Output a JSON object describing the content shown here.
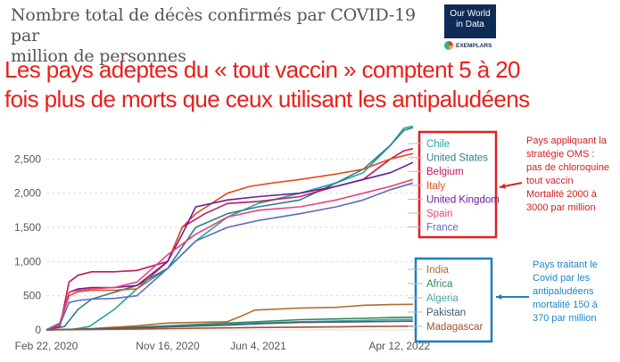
{
  "title_lines": [
    "Nombre total de décès confirmés par COVID-19 par",
    "million de personnes"
  ],
  "logo": {
    "line1": "Our World",
    "line2": "in Data",
    "sub": "EXEMPLARS"
  },
  "headline_lines": [
    "Les pays adeptes du « tout vaccin » comptent 5 à 20",
    "fois plus de morts que ceux utilisant les antipaludéens"
  ],
  "annotations": {
    "who_group": [
      "Pays appliquant la",
      "stratégie OMS :",
      "pas de chloroquine",
      "tout vaccin",
      "Mortalité 2000 à",
      "3000 par million"
    ],
    "antimalarial_group": [
      "Pays traitant le",
      "Covid par les",
      "antipaludéens",
      "mortalité 150 à",
      "370 par million"
    ]
  },
  "colors": {
    "red_box": "#e02020",
    "blue_box": "#1f7ec0",
    "headline": "#e8201b"
  },
  "chart_data": {
    "type": "line",
    "xlabel": "",
    "ylabel": "",
    "x_ticks": [
      "Feb 22, 2020",
      "Nov 16, 2020",
      "Jun 4, 2021",
      "Apr 12, 2022"
    ],
    "x_tick_positions": [
      0,
      268,
      468,
      780
    ],
    "x_range": [
      0,
      820
    ],
    "y_ticks": [
      0,
      500,
      1000,
      1500,
      2000,
      2500
    ],
    "y_tick_labels": [
      "0",
      "500",
      "1,000",
      "1,500",
      "2,000",
      "2,500"
    ],
    "y_range": [
      0,
      3000
    ],
    "grid": true,
    "legend_groups": [
      {
        "box": "red",
        "names": [
          "Chile",
          "United States",
          "Belgium",
          "Italy",
          "United Kingdom",
          "Spain",
          "France"
        ]
      },
      {
        "box": "blue",
        "names": [
          "India",
          "Africa",
          "Algeria",
          "Pakistan",
          "Madagascar"
        ]
      }
    ],
    "series": [
      {
        "name": "Chile",
        "color": "#26a69a",
        "x": [
          0,
          60,
          95,
          150,
          200,
          268,
          330,
          400,
          468,
          560,
          640,
          700,
          760,
          790,
          810
        ],
        "y": [
          0,
          10,
          50,
          300,
          600,
          900,
          1300,
          1650,
          1850,
          2000,
          2150,
          2300,
          2700,
          2950,
          2980
        ]
      },
      {
        "name": "United States",
        "color": "#2e7d8c",
        "x": [
          0,
          40,
          70,
          100,
          150,
          200,
          268,
          330,
          400,
          468,
          560,
          640,
          700,
          760,
          790,
          810
        ],
        "y": [
          0,
          50,
          300,
          450,
          550,
          650,
          900,
          1500,
          1700,
          1800,
          1900,
          2150,
          2350,
          2700,
          2920,
          2960
        ]
      },
      {
        "name": "Belgium",
        "color": "#c2185b",
        "x": [
          0,
          30,
          50,
          70,
          100,
          150,
          200,
          268,
          300,
          350,
          400,
          468,
          560,
          640,
          700,
          760,
          790,
          810
        ],
        "y": [
          0,
          50,
          700,
          800,
          850,
          850,
          870,
          1000,
          1500,
          1700,
          1850,
          1880,
          1950,
          2100,
          2200,
          2500,
          2620,
          2650
        ]
      },
      {
        "name": "Italy",
        "color": "#e64a19",
        "x": [
          0,
          30,
          50,
          70,
          100,
          150,
          200,
          268,
          300,
          330,
          400,
          450,
          500,
          560,
          640,
          700,
          760,
          810
        ],
        "y": [
          0,
          100,
          500,
          560,
          580,
          580,
          600,
          1000,
          1500,
          1700,
          2000,
          2100,
          2150,
          2200,
          2280,
          2350,
          2500,
          2580
        ]
      },
      {
        "name": "United Kingdom",
        "color": "#6a1b9a",
        "x": [
          0,
          30,
          50,
          70,
          100,
          150,
          200,
          268,
          300,
          330,
          400,
          468,
          560,
          640,
          700,
          760,
          810
        ],
        "y": [
          0,
          100,
          550,
          600,
          620,
          620,
          650,
          1000,
          1400,
          1800,
          1900,
          1950,
          2000,
          2100,
          2200,
          2300,
          2450
        ]
      },
      {
        "name": "Spain",
        "color": "#ec407a",
        "x": [
          0,
          30,
          50,
          70,
          100,
          150,
          200,
          268,
          330,
          400,
          468,
          560,
          640,
          700,
          760,
          810
        ],
        "y": [
          0,
          100,
          550,
          580,
          600,
          620,
          700,
          1100,
          1400,
          1650,
          1750,
          1800,
          1900,
          2000,
          2100,
          2200
        ]
      },
      {
        "name": "France",
        "color": "#5c6bc0",
        "x": [
          0,
          30,
          50,
          70,
          100,
          150,
          200,
          268,
          330,
          400,
          468,
          560,
          640,
          700,
          760,
          810
        ],
        "y": [
          0,
          80,
          400,
          430,
          450,
          460,
          500,
          900,
          1300,
          1500,
          1600,
          1700,
          1800,
          1900,
          2050,
          2150
        ]
      },
      {
        "name": "India",
        "color": "#b06a32",
        "x": [
          0,
          100,
          200,
          268,
          400,
          430,
          460,
          560,
          640,
          700,
          760,
          810
        ],
        "y": [
          0,
          20,
          60,
          100,
          120,
          200,
          290,
          320,
          330,
          360,
          370,
          375
        ]
      },
      {
        "name": "Africa",
        "color": "#2e8b57",
        "x": [
          0,
          100,
          200,
          268,
          400,
          468,
          560,
          640,
          700,
          760,
          810
        ],
        "y": [
          0,
          10,
          40,
          60,
          100,
          120,
          150,
          160,
          170,
          180,
          185
        ]
      },
      {
        "name": "Algeria",
        "color": "#4fa3a5",
        "x": [
          0,
          100,
          200,
          268,
          400,
          468,
          560,
          640,
          700,
          760,
          810
        ],
        "y": [
          0,
          15,
          30,
          50,
          80,
          100,
          120,
          130,
          140,
          150,
          152
        ]
      },
      {
        "name": "Pakistan",
        "color": "#3c5a78",
        "x": [
          0,
          100,
          200,
          268,
          400,
          468,
          560,
          640,
          700,
          760,
          810
        ],
        "y": [
          0,
          15,
          30,
          45,
          70,
          90,
          110,
          115,
          120,
          125,
          128
        ]
      },
      {
        "name": "Madagascar",
        "color": "#a0522d",
        "x": [
          0,
          100,
          200,
          268,
          400,
          468,
          560,
          640,
          700,
          760,
          810
        ],
        "y": [
          0,
          5,
          15,
          20,
          30,
          35,
          40,
          45,
          50,
          52,
          53
        ]
      }
    ]
  }
}
